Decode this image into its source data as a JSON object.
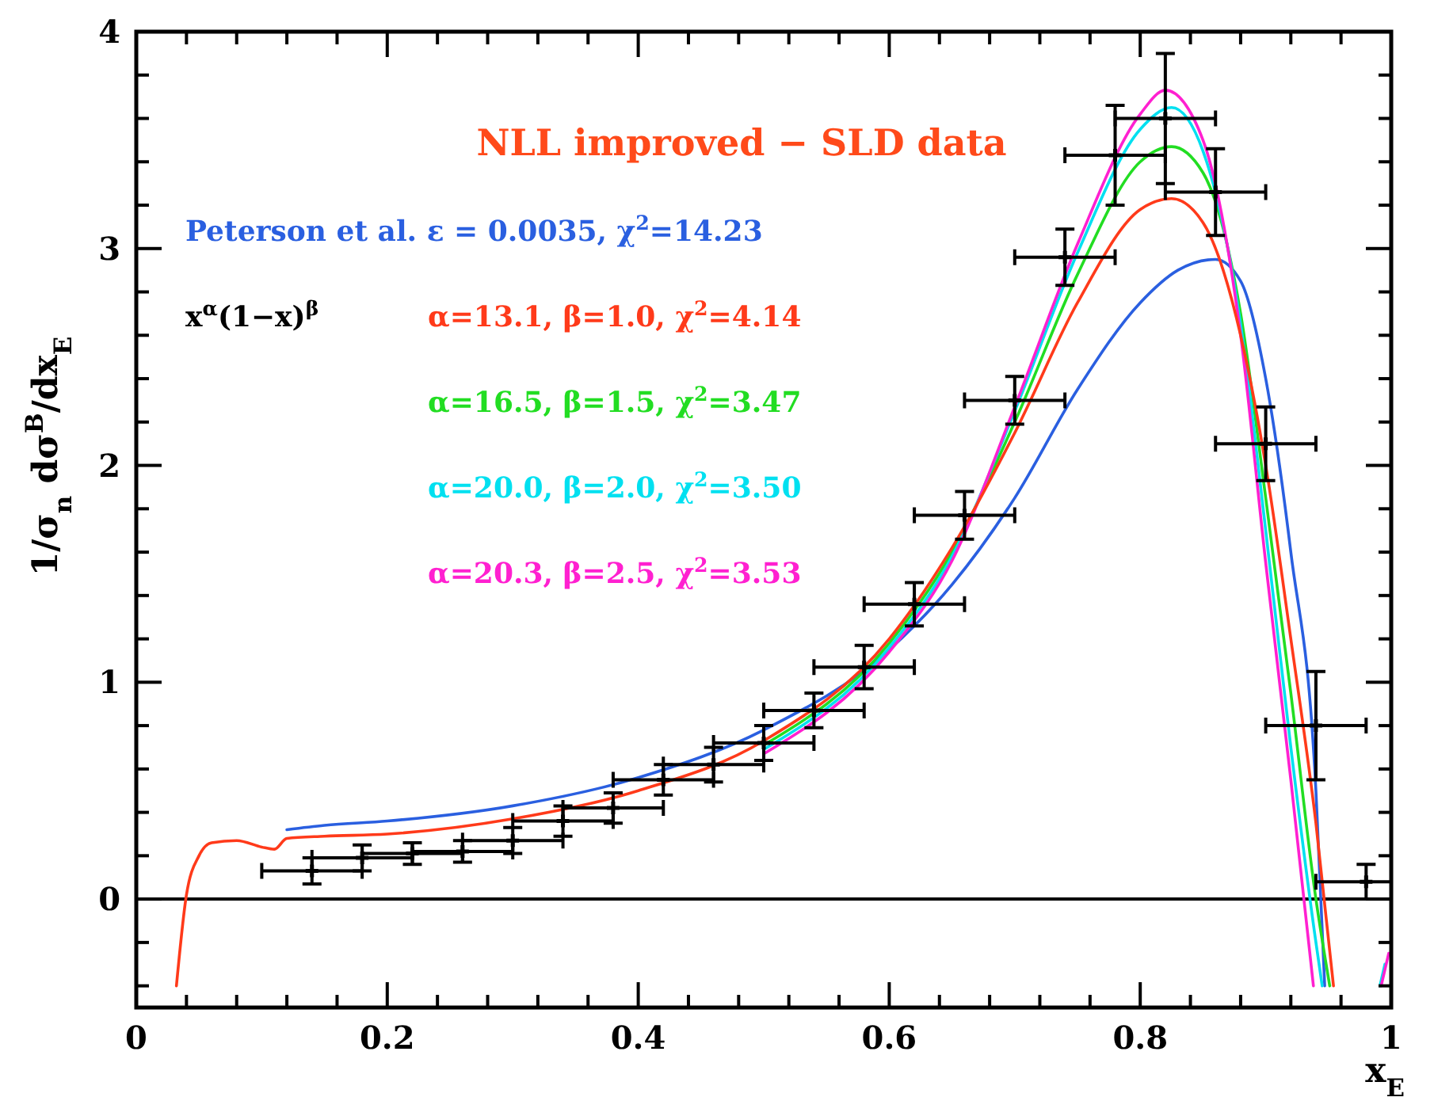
{
  "chart_data": {
    "type": "line",
    "title": "NLL improved − SLD data",
    "xlabel": "x$_{E}$",
    "ylabel": "1/σ$_{n}$ dσ$^{B}$/dx$_{E}$",
    "annotations": [
      "x$^{α}$(1−x)$^{β}$"
    ],
    "xlim": [
      0,
      1
    ],
    "ylim": [
      -0.5,
      4
    ],
    "xticks": [
      0,
      {
        "value": 0.04,
        "label": null
      },
      {
        "value": 0.08,
        "label": null
      },
      {
        "value": 0.12,
        "label": null
      },
      {
        "value": 0.16,
        "label": null
      },
      0.2,
      {
        "value": 0.24,
        "label": null
      },
      {
        "value": 0.28,
        "label": null
      },
      {
        "value": 0.32,
        "label": null
      },
      {
        "value": 0.36,
        "label": null
      },
      0.4,
      {
        "value": 0.44,
        "label": null
      },
      {
        "value": 0.48,
        "label": null
      },
      {
        "value": 0.52,
        "label": null
      },
      {
        "value": 0.56,
        "label": null
      },
      0.6,
      {
        "value": 0.64,
        "label": null
      },
      {
        "value": 0.68,
        "label": null
      },
      {
        "value": 0.72,
        "label": null
      },
      {
        "value": 0.76,
        "label": null
      },
      0.8,
      {
        "value": 0.84,
        "label": null
      },
      {
        "value": 0.88,
        "label": null
      },
      {
        "value": 0.92,
        "label": null
      },
      {
        "value": 0.96,
        "label": null
      },
      1
    ],
    "yticks": [
      {
        "value": -0.4,
        "label": null
      },
      {
        "value": -0.2,
        "label": null
      },
      0,
      {
        "value": 0.2,
        "label": null
      },
      {
        "value": 0.4,
        "label": null
      },
      {
        "value": 0.6,
        "label": null
      },
      {
        "value": 0.8,
        "label": null
      },
      1,
      {
        "value": 1.2,
        "label": null
      },
      {
        "value": 1.4,
        "label": null
      },
      {
        "value": 1.6,
        "label": null
      },
      {
        "value": 1.8,
        "label": null
      },
      2,
      {
        "value": 2.2,
        "label": null
      },
      {
        "value": 2.4,
        "label": null
      },
      {
        "value": 2.6,
        "label": null
      },
      {
        "value": 2.8,
        "label": null
      },
      3,
      {
        "value": 3.2,
        "label": null
      },
      {
        "value": 3.4,
        "label": null
      },
      {
        "value": 3.6,
        "label": null
      },
      {
        "value": 3.8,
        "label": null
      },
      4
    ],
    "grid": false,
    "legend": "top left",
    "line_style": "solid",
    "ref_lines": [
      {
        "axis": "y",
        "value": 0,
        "color": "#000000"
      }
    ],
    "series": [
      {
        "name": "Peterson et al. ε = 0.0035, χ$^{2}$=14.23",
        "marker": "none",
        "color": "#2a5fe0",
        "x": [
          0.12,
          0.15,
          0.2,
          0.3,
          0.4,
          0.5,
          0.6,
          0.65,
          0.7,
          0.75,
          0.8,
          0.83,
          0.86,
          0.88,
          0.9,
          0.92,
          0.94,
          0.947
        ],
        "values": [
          0.32,
          0.34,
          0.36,
          0.43,
          0.56,
          0.78,
          1.15,
          1.45,
          1.85,
          2.35,
          2.75,
          2.9,
          2.95,
          2.85,
          2.4,
          1.6,
          0.5,
          -0.4
        ]
      },
      {
        "name": "α=13.1, β=1.0, χ$^{2}$=4.14",
        "marker": "none",
        "color": "#ff3a1a",
        "x": [
          0.032,
          0.04,
          0.05,
          0.06,
          0.08,
          0.1,
          0.11,
          0.12,
          0.15,
          0.2,
          0.3,
          0.4,
          0.5,
          0.6,
          0.65,
          0.7,
          0.75,
          0.8,
          0.825,
          0.85,
          0.88,
          0.9,
          0.92,
          0.94,
          0.954
        ],
        "values": [
          -0.4,
          0.02,
          0.2,
          0.26,
          0.27,
          0.24,
          0.23,
          0.28,
          0.29,
          0.3,
          0.37,
          0.5,
          0.73,
          1.2,
          1.62,
          2.15,
          2.75,
          3.18,
          3.23,
          3.12,
          2.6,
          2.0,
          1.2,
          0.35,
          -0.4
        ]
      },
      {
        "name": "α=16.5, β=1.5, χ$^{2}$=3.47",
        "marker": "none",
        "color": "#22dd22",
        "x": [
          0.5,
          0.6,
          0.65,
          0.7,
          0.75,
          0.8,
          0.825,
          0.85,
          0.88,
          0.9,
          0.92,
          0.94,
          0.951
        ],
        "values": [
          0.71,
          1.18,
          1.6,
          2.2,
          2.88,
          3.4,
          3.47,
          3.35,
          2.7,
          1.85,
          0.95,
          0.0,
          -0.4
        ]
      },
      {
        "name": "α=20.0, β=2.0, χ$^{2}$=3.50",
        "marker": "none",
        "color": "#00e0f0",
        "x": [
          0.5,
          0.6,
          0.65,
          0.7,
          0.75,
          0.8,
          0.825,
          0.85,
          0.88,
          0.9,
          0.92,
          0.94,
          0.945,
          0.97,
          0.991,
          0.995
        ],
        "values": [
          0.69,
          1.16,
          1.58,
          2.25,
          2.98,
          3.55,
          3.65,
          3.45,
          2.65,
          1.7,
          0.7,
          -0.2,
          -0.4,
          null,
          -0.4,
          -0.3
        ]
      },
      {
        "name": "α=20.3, β=2.5, χ$^{2}$=3.53",
        "marker": "none",
        "color": "#ff20d0",
        "x": [
          0.5,
          0.6,
          0.65,
          0.7,
          0.75,
          0.8,
          0.82,
          0.85,
          0.88,
          0.9,
          0.92,
          0.938,
          0.97,
          0.992,
          0.998
        ],
        "values": [
          0.67,
          1.14,
          1.56,
          2.27,
          3.02,
          3.62,
          3.73,
          3.5,
          2.6,
          1.55,
          0.55,
          -0.4,
          null,
          -0.4,
          -0.25
        ]
      },
      {
        "type": "scatter",
        "marker": "cross",
        "color": "#000000",
        "x": [
          0.14,
          0.18,
          0.22,
          0.26,
          0.3,
          0.34,
          0.38,
          0.42,
          0.46,
          0.5,
          0.54,
          0.58,
          0.62,
          0.66,
          0.7,
          0.74,
          0.78,
          0.82,
          0.86,
          0.9,
          0.94,
          0.98
        ],
        "values": [
          0.13,
          0.19,
          0.21,
          0.22,
          0.27,
          0.36,
          0.42,
          0.55,
          0.62,
          0.72,
          0.87,
          1.07,
          1.36,
          1.77,
          2.3,
          2.96,
          3.43,
          3.6,
          3.26,
          2.1,
          0.8,
          0.08
        ],
        "errors": [
          0.06,
          0.06,
          0.05,
          0.05,
          0.06,
          0.07,
          0.07,
          0.07,
          0.08,
          0.08,
          0.08,
          0.1,
          0.1,
          0.11,
          0.11,
          0.13,
          0.23,
          0.3,
          0.2,
          0.17,
          0.25,
          0.08
        ],
        "xerrors": [
          0.04,
          0.04,
          0.04,
          0.04,
          0.04,
          0.04,
          0.04,
          0.04,
          0.04,
          0.04,
          0.04,
          0.04,
          0.04,
          0.04,
          0.04,
          0.04,
          0.04,
          0.04,
          0.04,
          0.04,
          0.04,
          0.04
        ]
      }
    ]
  }
}
